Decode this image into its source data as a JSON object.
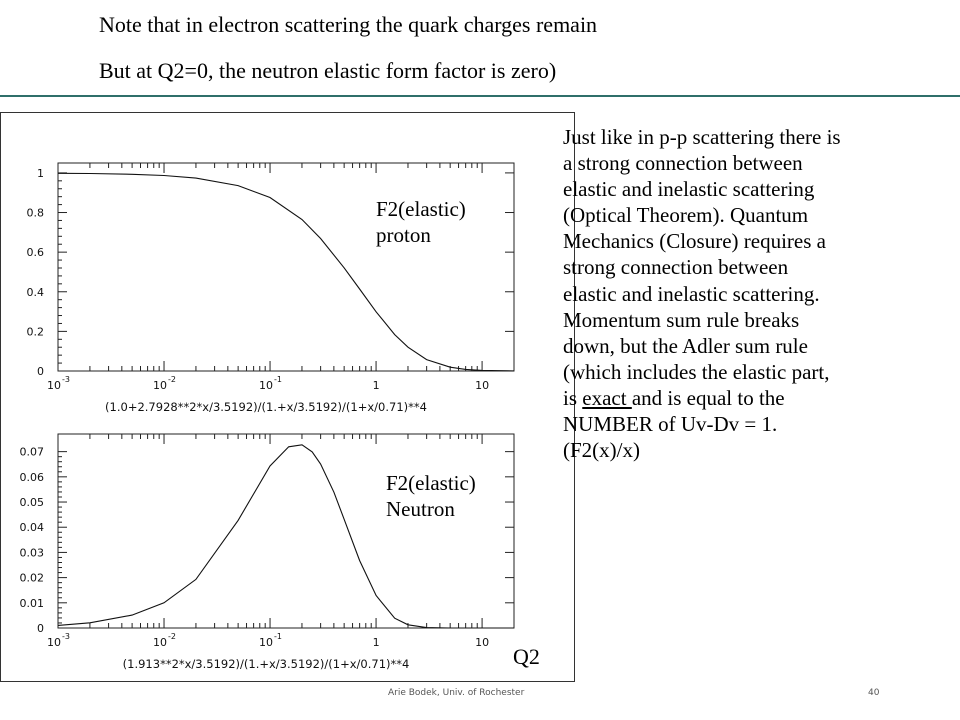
{
  "slide": {
    "line1": "Note that in electron scattering the quark charges remain",
    "line2": "But at Q2=0, the neutron elastic form factor is zero)",
    "label_proton_1": "F2(elastic)",
    "label_proton_2": "proton",
    "label_neutron_1": "F2(elastic)",
    "label_neutron_2": "Neutron",
    "label_q2": "Q2",
    "body_lines": [
      "Just like in p-p scattering there is",
      "a strong connection between",
      "elastic and inelastic scattering",
      "(Optical Theorem).    Quantum",
      "Mechanics (Closure) requires a",
      "strong connection between",
      "elastic and inelastic scattering.",
      "Momentum sum rule breaks",
      "down, but the Adler sum rule",
      "(which includes the elastic part,",
      "is ",
      "exact ",
      "and is equal to the",
      "NUMBER of Uv-Dv = 1.",
      "(F2(x)/x)"
    ],
    "footer": "Arie Bodek,  Univ. of Rochester",
    "page_number": "40",
    "accent_rule_color": "#2f6f6a"
  },
  "chart_data": [
    {
      "type": "line",
      "title": "",
      "xlabel": "(1.0+2.7928**2*x/3.5192)/(1.+x/3.5192)/(1+x/0.71)**4",
      "ylabel": "",
      "x_scale": "log",
      "xlim": [
        0.001,
        20
      ],
      "ylim": [
        0,
        1.05
      ],
      "x_tick_bases": [
        "10",
        "10",
        "10",
        "1",
        "10"
      ],
      "x_tick_exponents": [
        "-3",
        "-2",
        "-1",
        "",
        ""
      ],
      "x_tick_values": [
        0.001,
        0.01,
        0.1,
        1,
        10
      ],
      "y_ticks": [
        "0",
        "0.2",
        "0.4",
        "0.6",
        "0.8",
        "1"
      ],
      "y_tick_values": [
        0,
        0.2,
        0.4,
        0.6,
        0.8,
        1
      ],
      "series": [
        {
          "x": [
            0.001,
            0.002,
            0.005,
            0.01,
            0.02,
            0.05,
            0.1,
            0.2,
            0.3,
            0.5,
            0.7,
            1,
            1.5,
            2,
            3,
            5,
            7,
            10,
            20
          ],
          "y": [
            0.998,
            0.997,
            0.993,
            0.987,
            0.974,
            0.936,
            0.876,
            0.765,
            0.669,
            0.521,
            0.414,
            0.299,
            0.184,
            0.12,
            0.0577,
            0.0191,
            0.0081,
            0.0032,
            0.0005
          ]
        }
      ]
    },
    {
      "type": "line",
      "title": "",
      "xlabel": "(1.913**2*x/3.5192)/(1.+x/3.5192)/(1+x/0.71)**4",
      "ylabel": "",
      "x_scale": "log",
      "xlim": [
        0.001,
        20
      ],
      "ylim": [
        0,
        0.077
      ],
      "x_tick_bases": [
        "10",
        "10",
        "10",
        "1",
        "10"
      ],
      "x_tick_exponents": [
        "-3",
        "-2",
        "-1",
        "",
        ""
      ],
      "x_tick_values": [
        0.001,
        0.01,
        0.1,
        1,
        10
      ],
      "y_ticks": [
        "0",
        "0.01",
        "0.02",
        "0.03",
        "0.04",
        "0.05",
        "0.06",
        "0.07"
      ],
      "y_tick_values": [
        0,
        0.01,
        0.02,
        0.03,
        0.04,
        0.05,
        0.06,
        0.07
      ],
      "series": [
        {
          "x": [
            0.001,
            0.002,
            0.005,
            0.01,
            0.02,
            0.05,
            0.1,
            0.15,
            0.2,
            0.25,
            0.3,
            0.4,
            0.5,
            0.7,
            1,
            1.5,
            2,
            3,
            5,
            10,
            20
          ],
          "y": [
            0.00104,
            0.00207,
            0.00511,
            0.01,
            0.0193,
            0.0427,
            0.0643,
            0.0719,
            0.0727,
            0.0699,
            0.0651,
            0.0539,
            0.0432,
            0.0268,
            0.0129,
            0.0039,
            0.00128,
            0.00016,
            0.0,
            0.0,
            0.0
          ]
        }
      ]
    }
  ]
}
